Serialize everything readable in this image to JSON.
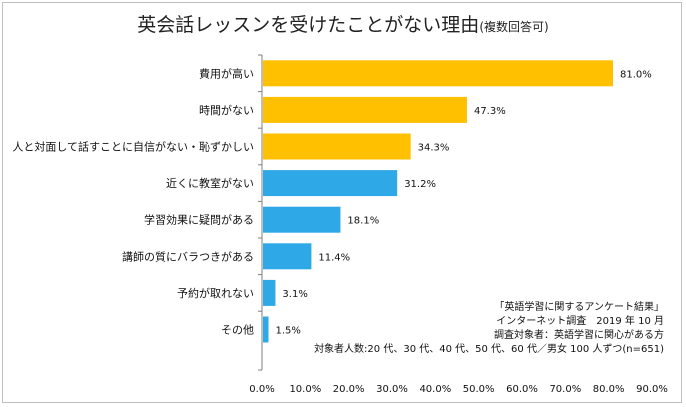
{
  "chart_data": {
    "type": "bar",
    "orientation": "horizontal",
    "title": "英会話レッスンを受けたことがない理由",
    "subtitle": "(複数回答可)",
    "categories": [
      "費用が高い",
      "時間がない",
      "人と対面して話すことに自信がない・恥ずかしい",
      "近くに教室がない",
      "学習効果に疑問がある",
      "講師の質にバラつきがある",
      "予約が取れない",
      "その他"
    ],
    "values": [
      81.0,
      47.3,
      34.3,
      31.2,
      18.1,
      11.4,
      3.1,
      1.5
    ],
    "value_labels": [
      "81.0%",
      "47.3%",
      "34.3%",
      "31.2%",
      "18.1%",
      "11.4%",
      "3.1%",
      "1.5%"
    ],
    "bar_colors": [
      "#FFC000",
      "#FFC000",
      "#FFC000",
      "#2EA8E6",
      "#2EA8E6",
      "#2EA8E6",
      "#2EA8E6",
      "#2EA8E6"
    ],
    "xlim": [
      0,
      90
    ],
    "xticks": [
      0,
      10,
      20,
      30,
      40,
      50,
      60,
      70,
      80,
      90
    ],
    "xtick_labels": [
      "0.0%",
      "10.0%",
      "20.0%",
      "30.0%",
      "40.0%",
      "50.0%",
      "60.0%",
      "70.0%",
      "80.0%",
      "90.0%"
    ],
    "grid": false
  },
  "notes": [
    "「英語学習に関するアンケート結果」",
    "インターネット調査　2019 年 10 月",
    "調査対象者：英語学習に関心がある方",
    "対象者人数:20 代、30 代、40 代、50 代、60 代／男女 100 人ずつ(n=651)"
  ]
}
